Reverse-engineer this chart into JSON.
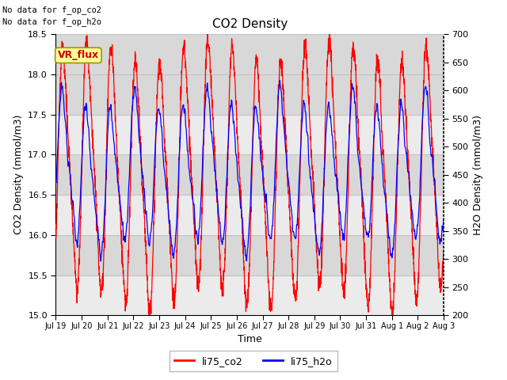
{
  "title": "CO2 Density",
  "xlabel": "Time",
  "ylabel_left": "CO2 Density (mmol/m3)",
  "ylabel_right": "H2O Density (mmol/m3)",
  "ylim_left": [
    15.0,
    18.5
  ],
  "ylim_right": [
    200,
    700
  ],
  "yticks_left": [
    15.0,
    15.5,
    16.0,
    16.5,
    17.0,
    17.5,
    18.0,
    18.5
  ],
  "yticks_right": [
    200,
    250,
    300,
    350,
    400,
    450,
    500,
    550,
    600,
    650,
    700
  ],
  "xtick_labels": [
    "Jul 19",
    "Jul 20",
    "Jul 21",
    "Jul 22",
    "Jul 23",
    "Jul 24",
    "Jul 25",
    "Jul 26",
    "Jul 27",
    "Jul 28",
    "Jul 29",
    "Jul 30",
    "Jul 31",
    "Aug 1",
    "Aug 2",
    "Aug 3"
  ],
  "annotation1": "No data for f_op_co2",
  "annotation2": "No data for f_op_h2o",
  "vr_flux_label": "VR_flux",
  "legend_co2": "li75_co2",
  "legend_h2o": "li75_h2o",
  "color_co2": "#ff0000",
  "color_h2o": "#0000ff",
  "background_color": "#ffffff",
  "plot_bg_color": "#ebebeb",
  "band_color": "#d8d8d8",
  "vr_flux_bg": "#ffff99",
  "vr_flux_border": "#999900"
}
